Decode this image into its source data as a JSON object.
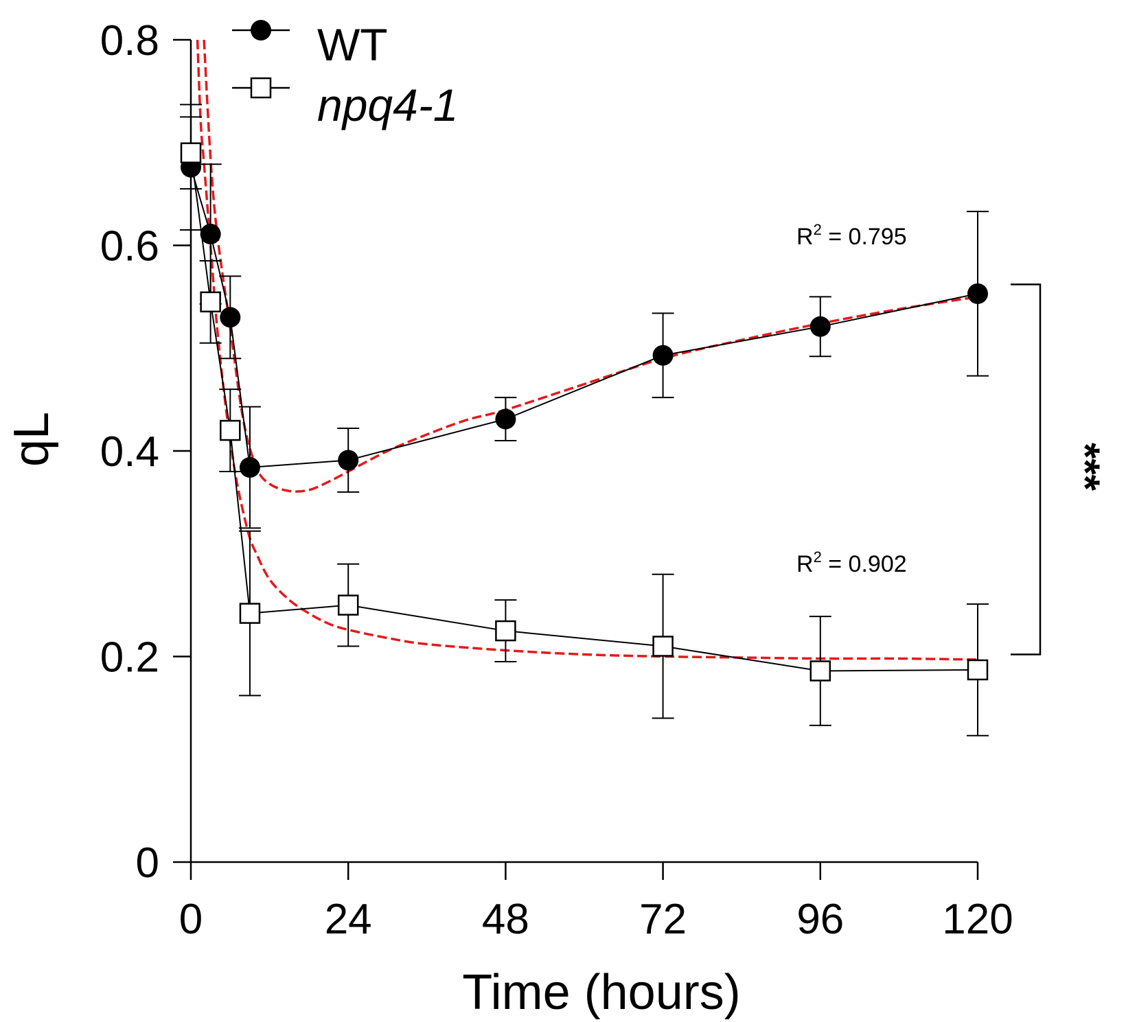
{
  "chart_data": {
    "type": "line",
    "xlabel": "Time (hours)",
    "ylabel": "qL",
    "xlim": [
      0,
      120
    ],
    "ylim": [
      0,
      0.8
    ],
    "xticks": [
      0,
      24,
      48,
      72,
      96,
      120
    ],
    "xtick_labels": [
      "0",
      "24",
      "48",
      "72",
      "96",
      "120"
    ],
    "yticks": [
      0,
      0.2,
      0.4,
      0.6,
      0.8
    ],
    "ytick_labels": [
      "0",
      "0.2",
      "0.4",
      "0.6",
      "0.8"
    ],
    "grid": false,
    "legend": "top-left",
    "series": [
      {
        "name": "WT",
        "marker": "filled-circle",
        "color": "#000000",
        "x": [
          0,
          3,
          6,
          9,
          24,
          48,
          72,
          96,
          120
        ],
        "y": [
          0.676,
          0.611,
          0.53,
          0.384,
          0.391,
          0.431,
          0.493,
          0.521,
          0.553
        ],
        "err": [
          0.061,
          0.068,
          0.04,
          0.059,
          0.031,
          0.021,
          0.041,
          0.029,
          0.08
        ],
        "fit": {
          "color": "#e31a1c",
          "style": "dashed",
          "r2_label": "R",
          "r2_sup": "2",
          "r2_value": " = 0.795",
          "y_at_x": [
            [
              2,
              0.8
            ],
            [
              3,
              0.685
            ],
            [
              4,
              0.612
            ],
            [
              6,
              0.52
            ],
            [
              8,
              0.43
            ],
            [
              10,
              0.384
            ],
            [
              12,
              0.368
            ],
            [
              15,
              0.361
            ],
            [
              18,
              0.362
            ],
            [
              21,
              0.37
            ],
            [
              24,
              0.38
            ],
            [
              30,
              0.4
            ],
            [
              36,
              0.416
            ],
            [
              42,
              0.43
            ],
            [
              48,
              0.44
            ],
            [
              60,
              0.465
            ],
            [
              72,
              0.49
            ],
            [
              84,
              0.508
            ],
            [
              96,
              0.524
            ],
            [
              108,
              0.538
            ],
            [
              120,
              0.55
            ]
          ]
        }
      },
      {
        "name": "npq4-1",
        "marker": "open-square",
        "color": "#000000",
        "x": [
          0,
          3,
          6,
          9,
          24,
          48,
          72,
          96,
          120
        ],
        "y": [
          0.69,
          0.545,
          0.42,
          0.242,
          0.25,
          0.225,
          0.21,
          0.186,
          0.187
        ],
        "err": [
          0.035,
          0.04,
          0.04,
          0.08,
          0.04,
          0.03,
          0.07,
          0.053,
          0.064
        ],
        "fit": {
          "color": "#e31a1c",
          "style": "dashed",
          "r2_label": "R",
          "r2_sup": "2",
          "r2_value": " = 0.902",
          "y_at_x": [
            [
              1,
              0.8
            ],
            [
              1.5,
              0.72
            ],
            [
              2,
              0.68
            ],
            [
              3,
              0.6
            ],
            [
              4,
              0.52
            ],
            [
              5,
              0.46
            ],
            [
              6,
              0.41
            ],
            [
              7,
              0.37
            ],
            [
              8,
              0.34
            ],
            [
              9,
              0.315
            ],
            [
              10,
              0.3
            ],
            [
              12,
              0.275
            ],
            [
              15,
              0.255
            ],
            [
              18,
              0.242
            ],
            [
              21,
              0.232
            ],
            [
              24,
              0.226
            ],
            [
              30,
              0.218
            ],
            [
              36,
              0.212
            ],
            [
              48,
              0.206
            ],
            [
              60,
              0.202
            ],
            [
              72,
              0.2
            ],
            [
              84,
              0.199
            ],
            [
              96,
              0.198
            ],
            [
              108,
              0.198
            ],
            [
              120,
              0.197
            ]
          ]
        }
      }
    ],
    "annotations": {
      "significance": "***",
      "bracket_y_range": [
        0.202,
        0.562
      ]
    }
  }
}
